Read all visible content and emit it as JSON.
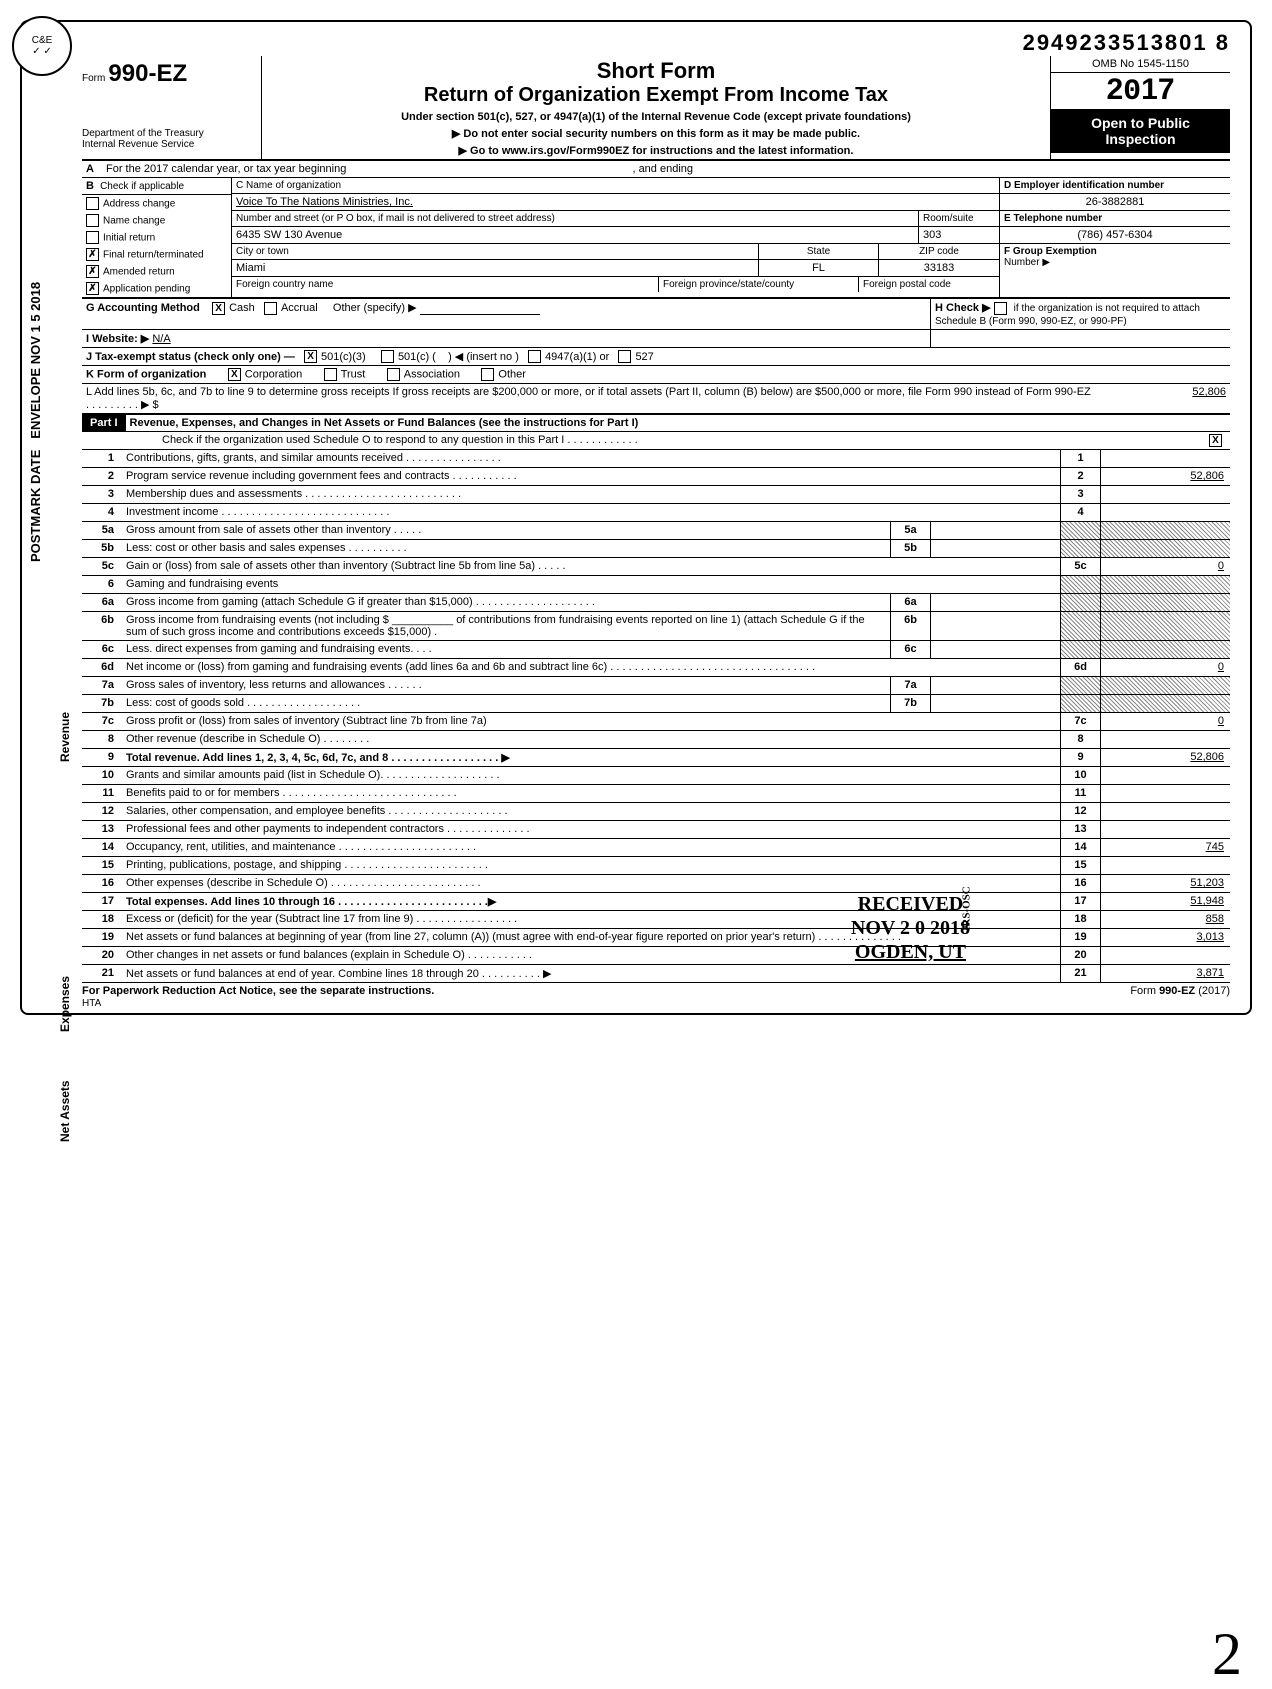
{
  "dln": "2949233513801   8",
  "omb": "OMB No 1545-1150",
  "tax_year": "2017",
  "open_public": "Open to Public Inspection",
  "form_no": "990-EZ",
  "form_prefix": "Form",
  "dept": "Department of the Treasury",
  "irs": "Internal Revenue Service",
  "title1": "Short Form",
  "title2": "Return of Organization Exempt From Income Tax",
  "subtitle1": "Under section 501(c), 527, or 4947(a)(1) of the Internal Revenue Code (except private foundations)",
  "subtitle2": "▶  Do not enter social security numbers on this form as it may be made public.",
  "subtitle3": "▶  Go to www.irs.gov/Form990EZ for instructions and the latest information.",
  "stamp_circle_top": "C&E",
  "stamp_circle_bot": "✓ ✓",
  "lineA": "For the 2017 calendar year, or tax year beginning",
  "lineA_end": ", and ending",
  "B_label": "Check if applicable",
  "B_items": [
    "Address change",
    "Name change",
    "Initial return",
    "Final return/terminated",
    "Amended return",
    "Application pending"
  ],
  "B_checked": [
    false,
    false,
    false,
    true,
    true,
    true
  ],
  "C_name_label": "C  Name of organization",
  "C_name": "Voice To The Nations Ministries, Inc.",
  "C_addr_label": "Number and street (or P O  box, if mail is not delivered to street address)",
  "C_addr": "6435 SW 130 Avenue",
  "C_room_label": "Room/suite",
  "C_room": "303",
  "C_city_label": "City or town",
  "C_city": "Miami",
  "C_state_label": "State",
  "C_state": "FL",
  "C_zip_label": "ZIP code",
  "C_zip": "33183",
  "C_foreign_country_label": "Foreign country name",
  "C_foreign_prov_label": "Foreign province/state/county",
  "C_foreign_postal_label": "Foreign postal code",
  "D_label": "D  Employer identification number",
  "D_val": "26-3882881",
  "E_label": "E  Telephone number",
  "E_val": "(786) 457-6304",
  "F_label": "F  Group Exemption",
  "F_sub": "Number ▶",
  "G_label": "G   Accounting Method",
  "G_cash": "Cash",
  "G_accrual": "Accrual",
  "G_other": "Other (specify)    ▶",
  "G_cash_checked": true,
  "H_label": "H  Check ▶",
  "H_text": "if the organization is not required to attach Schedule B (Form 990, 990-EZ, or 990-PF)",
  "I_label": "I   Website: ▶",
  "I_val": "N/A",
  "J_label": "J   Tax-exempt status (check only one) —",
  "J_501c3": "501(c)(3)",
  "J_501c": "501(c) (",
  "J_insert": ") ◀ (insert no )",
  "J_4947": "4947(a)(1) or",
  "J_527": "527",
  "J_501c3_checked": true,
  "K_label": "K  Form of organization",
  "K_corp": "Corporation",
  "K_trust": "Trust",
  "K_assoc": "Association",
  "K_other": "Other",
  "K_corp_checked": true,
  "L_text": "L   Add lines 5b, 6c, and 7b to line 9 to determine gross receipts  If gross receipts are $200,000 or more, or if total assets (Part II, column (B) below) are $500,000 or more, file Form 990 instead of Form 990-EZ  .  .  .  .  .  .  .  .  .  ▶ $",
  "L_val": "52,806",
  "part1_hdr": "Part I",
  "part1_title": "Revenue, Expenses, and Changes in Net Assets or Fund Balances (see the instructions for Part I)",
  "part1_check": "Check if the organization used Schedule O to respond to any question in this Part I  .  .  .  .  .  .  .  .  .  .  .  .",
  "part1_checked": true,
  "lines": {
    "1": {
      "desc": "Contributions, gifts, grants, and similar amounts received .  .  .  .  .  .  .  .  .  .  .  .  .  .  .  .",
      "box": "1",
      "amt": ""
    },
    "2": {
      "desc": "Program service revenue including government fees and contracts .  .  .  .  .  .   .  .  .  .  .",
      "box": "2",
      "amt": "52,806"
    },
    "3": {
      "desc": "Membership dues and assessments .  .  .  .  .  .  .  .  .  .  .  .  .  .  .  .  .  .  .  .  .  .  .  .  .  .",
      "box": "3",
      "amt": ""
    },
    "4": {
      "desc": "Investment income .  .  .   .   .   .   .      .   .   .   .   .   .   .   .   .   .   .   .   .   .   .   .   .   .   .   .   .",
      "box": "4",
      "amt": ""
    },
    "5a": {
      "desc": "Gross amount from sale of assets other than inventory .  .  .  .  .",
      "inbox": "5a"
    },
    "5b": {
      "desc": "Less: cost or other basis and sales expenses .  .  .  .  .  .  .  .  .  .",
      "inbox": "5b"
    },
    "5c": {
      "desc": "Gain or (loss) from sale of assets other than inventory (Subtract line 5b from line 5a) .  .  .  .  .",
      "box": "5c",
      "amt": "0"
    },
    "6": {
      "desc": "Gaming and fundraising events"
    },
    "6a": {
      "desc": "Gross income from gaming (attach Schedule G if greater than $15,000) .  .  .  .  .  .  .  .  .  .  .   .   .   .   .   .   .   .   .   .",
      "inbox": "6a"
    },
    "6b": {
      "desc": "Gross income from fundraising events (not including    $ __________  of contributions from fundraising events reported on line 1) (attach Schedule G if the sum of such gross income and contributions exceeds $15,000)   .",
      "inbox": "6b"
    },
    "6c": {
      "desc": "Less. direct expenses from gaming and fundraising events.  .  .  .",
      "inbox": "6c"
    },
    "6d": {
      "desc": "Net income or (loss) from gaming and fundraising events (add lines 6a and 6b and subtract line 6c) .  .  .  .  .  .  .  .  .  .  .  .  .  .  .  .  .  .  .  .  .  .  .  .  .  .  .  .   .  .  .  .  .  .",
      "box": "6d",
      "amt": "0"
    },
    "7a": {
      "desc": "Gross sales of inventory, less returns and allowances .  .  .  .  .  .",
      "inbox": "7a"
    },
    "7b": {
      "desc": "Less: cost of goods sold .  .  .  .  .  .  .  .  .  .  .  .  .  .  .  .  .  .  .",
      "inbox": "7b"
    },
    "7c": {
      "desc": "Gross profit or (loss) from sales of inventory (Subtract line 7b from line 7a)",
      "box": "7c",
      "amt": "0"
    },
    "8": {
      "desc": "Other revenue (describe in Schedule O)    .  .  .  .  .  .  .  .",
      "box": "8",
      "amt": ""
    },
    "9": {
      "desc": "Total revenue. Add lines 1, 2, 3, 4, 5c, 6d, 7c, and 8 .  .  .  .  .  .   .  .  .  .  .  .  .  .  .  .  .  .  ▶",
      "box": "9",
      "amt": "52,806",
      "bold": true
    },
    "10": {
      "desc": "Grants and similar amounts paid (list in Schedule O).  .  .  .  .  .   .  .  .  .  .  .  .  .  .  .  .  .  .  .",
      "box": "10",
      "amt": ""
    },
    "11": {
      "desc": "Benefits paid to or for members .  .  .  .  .  .  .  .  .  .  .  .  .  .  .  .  .  .  .  .  .  .  .  .  .  .  .  .  .",
      "box": "11",
      "amt": ""
    },
    "12": {
      "desc": "Salaries, other compensation, and employee benefits .  .  .  .  .  .  .  .  .  .  .  .  .  .  .  .  .  .  .  .",
      "box": "12",
      "amt": ""
    },
    "13": {
      "desc": "Professional fees and other payments to independent contractors  .  .  .  .  .  .  .  .  .  .  .  .  .  .",
      "box": "13",
      "amt": ""
    },
    "14": {
      "desc": "Occupancy, rent, utilities, and maintenance    .  .  .  .  .  .  .  .  .  .  .  .  .  .  .  .  .  .  .  .  .  .  .",
      "box": "14",
      "amt": "745"
    },
    "15": {
      "desc": "Printing, publications, postage, and shipping .  .  .  .  .  .  .  .  .  .  .  .  .  .  .  .  .  .  .  .  .  .  .  .",
      "box": "15",
      "amt": ""
    },
    "16": {
      "desc": "Other expenses (describe in Schedule O)  .  .  .  .  .  .  .  .  .  .  .  .  .  .  .  .  .  .  .  .  .  .  .  .  .",
      "box": "16",
      "amt": "51,203"
    },
    "17": {
      "desc": "Total expenses. Add lines 10 through 16 .  .  .  .  .  .  .  .  .  .  .  .  .  .  .  .  .  .  .  .  .  .  .  .  .▶",
      "box": "17",
      "amt": "51,948",
      "bold": true
    },
    "18": {
      "desc": "Excess or (deficit) for the year (Subtract line 17 from line 9) .  .  .  .  .  .  .  .  .  .  .  .  .  .  .  .  .",
      "box": "18",
      "amt": "858"
    },
    "19": {
      "desc": "Net assets or fund balances at beginning of year (from line 27, column (A)) (must agree with end-of-year figure reported on prior year's return) .    .   .   .   .   .   .   .   .   .   .   .   .   .",
      "box": "19",
      "amt": "3,013"
    },
    "20": {
      "desc": "Other changes in net assets or fund balances (explain in Schedule O) .  .  .  .  .  .  .  .  .  .  .",
      "box": "20",
      "amt": ""
    },
    "21": {
      "desc": "Net assets or fund balances at end of year. Combine lines 18 through 20  .  .  .  .  .  .  .  .  .  . ▶",
      "box": "21",
      "amt": "3,871"
    }
  },
  "received": {
    "l1": "RECEIVED",
    "l2": "NOV 2 0 2018",
    "l3": "OGDEN, UT",
    "side": "IRS-OSC"
  },
  "footer_left": "For Paperwork Reduction Act Notice, see the separate instructions.",
  "footer_hta": "HTA",
  "footer_right": "Form 990-EZ (2017)",
  "side_text": "ENVELOPE  NOV 1 5 2018",
  "side_text2": "POSTMARK DATE",
  "side_revenue": "Revenue",
  "side_expenses": "Expenses",
  "side_netassets": "Net Assets"
}
